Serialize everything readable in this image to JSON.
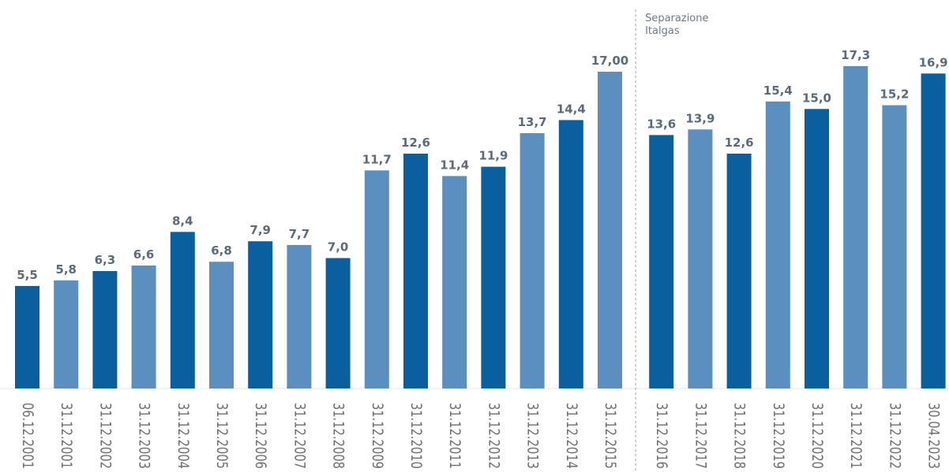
{
  "chart_data": {
    "type": "bar",
    "categories": [
      "06.12.2001",
      "31.12.2001",
      "31.12.2002",
      "31.12.2003",
      "31.12.2004",
      "31.12.2005",
      "31.12.2006",
      "31.12.2007",
      "31.12.2008",
      "31.12.2009",
      "31.12.2010",
      "31.12.2011",
      "31.12.2012",
      "31.12.2013",
      "31.12.2014",
      "31.12.2015",
      "31.12.2016",
      "31.12.2017",
      "31.12.2018",
      "31.12.2019",
      "31.12.2020",
      "31.12.2021",
      "31.12.2022",
      "30.04.2023"
    ],
    "values": [
      5.5,
      5.8,
      6.3,
      6.6,
      8.4,
      6.8,
      7.9,
      7.7,
      7.0,
      11.7,
      12.6,
      11.4,
      11.9,
      13.7,
      14.4,
      17.0,
      13.6,
      13.9,
      12.6,
      15.4,
      15.0,
      17.3,
      15.2,
      16.9
    ],
    "value_labels": [
      "5,5",
      "5,8",
      "6,3",
      "6,6",
      "8,4",
      "6,8",
      "7,9",
      "7,7",
      "7,0",
      "11,7",
      "12,6",
      "11,4",
      "11,9",
      "13,7",
      "14,4",
      "17,00",
      "13,6",
      "13,9",
      "12,6",
      "15,4",
      "15,0",
      "17,3",
      "15,2",
      "16,9"
    ],
    "bar_colors": [
      "#0a5f9e",
      "#5b8fc0",
      "#0a5f9e",
      "#5b8fc0",
      "#0a5f9e",
      "#5b8fc0",
      "#0a5f9e",
      "#5b8fc0",
      "#0a5f9e",
      "#5b8fc0",
      "#0a5f9e",
      "#5b8fc0",
      "#0a5f9e",
      "#5b8fc0",
      "#0a5f9e",
      "#5b8fc0",
      "#0a5f9e",
      "#5b8fc0",
      "#0a5f9e",
      "#5b8fc0",
      "#0a5f9e",
      "#5b8fc0",
      "#5b8fc0",
      "#0a5f9e"
    ],
    "title": "",
    "xlabel": "",
    "ylabel": "",
    "ylim": [
      0,
      18
    ],
    "grid": false,
    "annotation": {
      "lines": [
        "Separazione",
        "Italgas"
      ],
      "after_category_index": 15
    }
  }
}
